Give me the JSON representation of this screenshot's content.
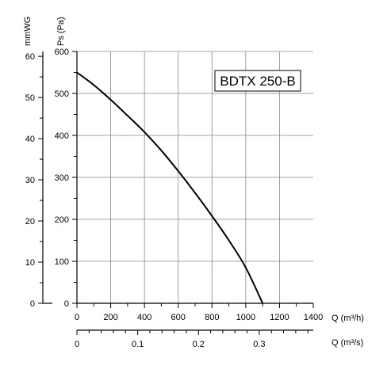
{
  "chart_data": {
    "type": "line",
    "model_label": "BDTX 250-B",
    "left_axis_titles": {
      "mmwg": "mmWG",
      "pa": "Ps (Pa)"
    },
    "bottom_axis_titles": {
      "m3h": "Q (m³/h)",
      "m3s": "Q (m³/s)"
    },
    "x_m3h": {
      "range": [
        0,
        1400
      ],
      "ticks": [
        0,
        200,
        400,
        600,
        800,
        1000,
        1200,
        1400
      ]
    },
    "x_m3s": {
      "ticks": [
        0,
        0.1,
        0.2,
        0.3
      ],
      "tick_labels": [
        "0",
        "0.1",
        "0.2",
        "0.3"
      ]
    },
    "y_pa": {
      "range": [
        0,
        600
      ],
      "ticks": [
        0,
        100,
        200,
        300,
        400,
        500,
        600
      ]
    },
    "y_mmwg": {
      "ticks": [
        0,
        10,
        20,
        30,
        40,
        50,
        60
      ]
    },
    "grid": true,
    "series": [
      {
        "x": [
          0,
          100,
          200,
          300,
          400,
          500,
          600,
          700,
          800,
          900,
          1000,
          1100
        ],
        "y": [
          550,
          520,
          485,
          447,
          408,
          364,
          315,
          263,
          208,
          150,
          85,
          0
        ]
      }
    ]
  }
}
